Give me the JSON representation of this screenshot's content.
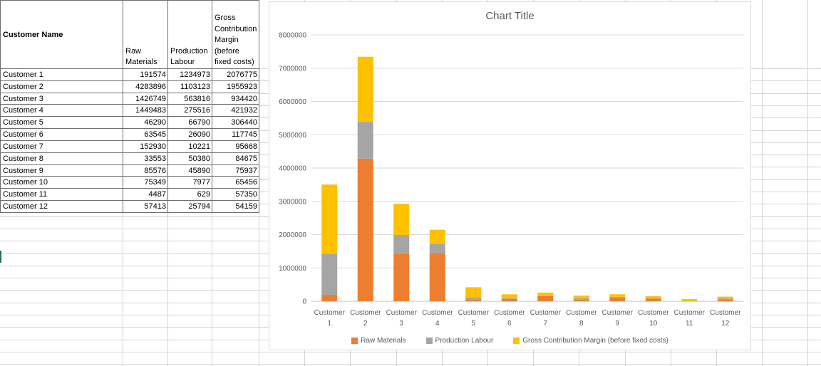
{
  "table": {
    "header": {
      "customer": "Customer Name",
      "raw_materials": "Raw Materials",
      "production_labour": "Production Labour",
      "gross_margin": "Gross Contribution Margin (before fixed costs)"
    },
    "rows": [
      {
        "name": "Customer 1",
        "raw": "191574",
        "labour": "1234973",
        "margin": "2076775"
      },
      {
        "name": "Customer 2",
        "raw": "4283896",
        "labour": "1103123",
        "margin": "1955923"
      },
      {
        "name": "Customer 3",
        "raw": "1426749",
        "labour": "563816",
        "margin": "934420"
      },
      {
        "name": "Customer 4",
        "raw": "1449483",
        "labour": "275516",
        "margin": "421932"
      },
      {
        "name": "Customer 5",
        "raw": "46290",
        "labour": "66790",
        "margin": "306440"
      },
      {
        "name": "Customer 6",
        "raw": "63545",
        "labour": "26090",
        "margin": "117745"
      },
      {
        "name": "Customer 7",
        "raw": "152930",
        "labour": "10221",
        "margin": "95668"
      },
      {
        "name": "Customer 8",
        "raw": "33553",
        "labour": "50380",
        "margin": "84675"
      },
      {
        "name": "Customer 9",
        "raw": "85576",
        "labour": "45890",
        "margin": "75937"
      },
      {
        "name": "Customer 10",
        "raw": "75349",
        "labour": "7977",
        "margin": "65456"
      },
      {
        "name": "Customer 11",
        "raw": "4487",
        "labour": "629",
        "margin": "57350"
      },
      {
        "name": "Customer 12",
        "raw": "57413",
        "labour": "25794",
        "margin": "54159"
      }
    ]
  },
  "chart_data": {
    "type": "bar",
    "stacked": true,
    "title": "Chart Title",
    "categories": [
      "Customer 1",
      "Customer 2",
      "Customer 3",
      "Customer 4",
      "Customer 5",
      "Customer 6",
      "Customer 7",
      "Customer 8",
      "Customer 9",
      "Customer 10",
      "Customer 11",
      "Customer 12"
    ],
    "series": [
      {
        "name": "Raw Materials",
        "color": "#ED7D31",
        "values": [
          191574,
          4283896,
          1426749,
          1449483,
          46290,
          63545,
          152930,
          33553,
          85576,
          75349,
          4487,
          57413
        ]
      },
      {
        "name": "Production Labour",
        "color": "#A5A5A5",
        "values": [
          1234973,
          1103123,
          563816,
          275516,
          66790,
          26090,
          10221,
          50380,
          45890,
          7977,
          629,
          25794
        ]
      },
      {
        "name": "Gross Contribution Margin (before fixed costs)",
        "color": "#FFC000",
        "values": [
          2076775,
          1955923,
          934420,
          421932,
          306440,
          117745,
          95668,
          84675,
          75937,
          65456,
          57350,
          54159
        ]
      }
    ],
    "ylim": [
      0,
      8000000
    ],
    "ytick_step": 1000000,
    "grid": true,
    "legend_position": "bottom",
    "text_color": "#595959",
    "gridline_color": "#D9D9D9"
  },
  "sheet": {
    "selection_color": "#217346",
    "gridline_color": "#D4D4D4"
  }
}
